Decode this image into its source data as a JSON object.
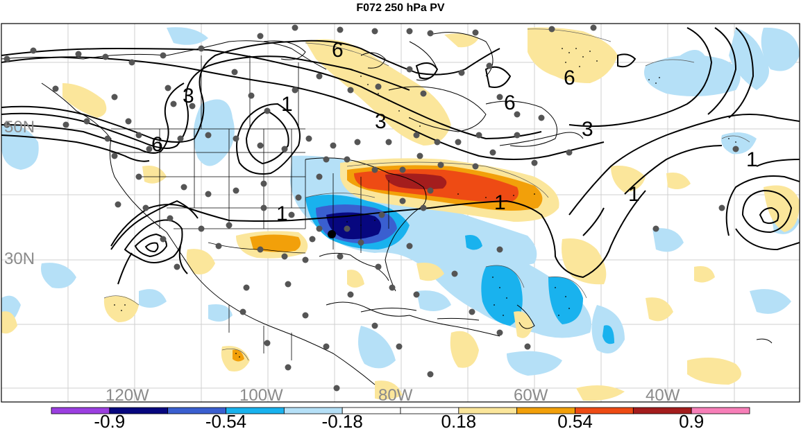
{
  "title": "F072 250 hPa PV",
  "lat_labels": [
    "50N",
    "30N"
  ],
  "lon_labels": [
    "120W",
    "100W",
    "80W",
    "60W",
    "40W"
  ],
  "contour_labels": [
    "6",
    "6",
    "3",
    "3",
    "3",
    "1",
    "1",
    "1",
    "1",
    "1",
    "6",
    "6"
  ],
  "colorbar": {
    "colors": [
      "#9b3fe0",
      "#07077f",
      "#3a5fd0",
      "#19b2ee",
      "#b5e0f7",
      "#ffffff",
      "#ffffff",
      "#fbe69b",
      "#f2a00a",
      "#ee4b14",
      "#a41d1d",
      "#f77fb8"
    ],
    "labels": [
      "-0.9",
      "-0.54",
      "-0.18",
      "0.18",
      "0.54",
      "0.9"
    ]
  },
  "palette": {
    "anomaly_neg_light": "#b5e0f7",
    "anomaly_neg_mid": "#19b2ee",
    "anomaly_neg_strong": "#3a5fd0",
    "anomaly_neg_max": "#07077f",
    "anomaly_pos_light": "#fbe69b",
    "anomaly_pos_mid": "#f2a00a",
    "anomaly_pos_strong": "#ee4b14",
    "anomaly_pos_max": "#a41d1d",
    "station_dot": "#555555"
  }
}
